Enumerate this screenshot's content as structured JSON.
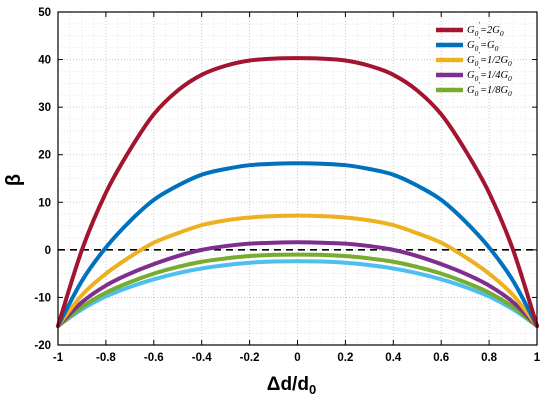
{
  "chart_data": {
    "type": "line",
    "title": "",
    "xlabel_main": "Δd/d",
    "xlabel_sub": "0",
    "ylabel": "β",
    "xlim": [
      -1,
      1
    ],
    "ylim": [
      -20,
      50
    ],
    "xticks": [
      -1,
      -0.8,
      -0.6,
      -0.4,
      -0.2,
      0,
      0.2,
      0.4,
      0.6,
      0.8,
      1
    ],
    "yticks": [
      -20,
      -10,
      0,
      10,
      20,
      30,
      40,
      50
    ],
    "xtick_labels": [
      "-1",
      "-0.8",
      "-0.6",
      "-0.4",
      "-0.2",
      "0",
      "0.2",
      "0.4",
      "0.6",
      "0.8",
      "1"
    ],
    "ytick_labels": [
      "-20",
      "-10",
      "0",
      "10",
      "20",
      "30",
      "40",
      "50"
    ],
    "grid": true,
    "legend_position": "top-right",
    "reference_line": {
      "y": 0,
      "style": "dashed"
    },
    "x": [
      -1,
      -0.9,
      -0.8,
      -0.7,
      -0.6,
      -0.5,
      -0.4,
      -0.3,
      -0.2,
      -0.1,
      0,
      0.1,
      0.2,
      0.3,
      0.4,
      0.5,
      0.6,
      0.7,
      0.8,
      0.9,
      1
    ],
    "series": [
      {
        "name_html": "<tspan>G</tspan><tspan class=\"sub\" dy=\"3\">0</tspan><tspan dy=\"-9\" class=\"sub\">'</tspan><tspan dy=\"6\">=2G</tspan><tspan class=\"sub\" dy=\"3\">0</tspan>",
        "color": "#a2142f",
        "values": [
          -16,
          0,
          12,
          21,
          28.5,
          33.5,
          36.8,
          38.7,
          39.8,
          40.2,
          40.3,
          40.2,
          39.8,
          38.7,
          36.8,
          33.5,
          28.5,
          21,
          12,
          0,
          -16
        ]
      },
      {
        "name_html": "<tspan>G</tspan><tspan class=\"sub\" dy=\"3\">0</tspan><tspan dy=\"-9\" class=\"sub\">'</tspan><tspan dy=\"6\">=G</tspan><tspan class=\"sub\" dy=\"3\">0</tspan>",
        "color": "#0072bd",
        "values": [
          -16,
          -6.5,
          0.5,
          6,
          10.5,
          13.5,
          15.8,
          17,
          17.8,
          18.1,
          18.2,
          18.1,
          17.8,
          17,
          15.8,
          13.5,
          10.5,
          6,
          0.5,
          -6.5,
          -16
        ]
      },
      {
        "name_html": "<tspan>G</tspan><tspan class=\"sub\" dy=\"3\">0</tspan><tspan dy=\"-9\" class=\"sub\">'</tspan><tspan dy=\"6\">=1/2G</tspan><tspan class=\"sub\" dy=\"3\">0</tspan>",
        "color": "#edb120",
        "values": [
          -16,
          -9.5,
          -5,
          -1.5,
          1.5,
          3.5,
          5.2,
          6.2,
          6.8,
          7.1,
          7.2,
          7.1,
          6.8,
          6.2,
          5.2,
          3.5,
          1.5,
          -1.5,
          -5,
          -9.5,
          -16
        ]
      },
      {
        "name_html": "<tspan>G</tspan><tspan class=\"sub\" dy=\"3\">0</tspan><tspan dy=\"-9\" class=\"sub\">'</tspan><tspan dy=\"6\">=1/4G</tspan><tspan class=\"sub\" dy=\"3\">0</tspan>",
        "color": "#7e2f8e",
        "values": [
          -16,
          -11,
          -7.5,
          -5,
          -3,
          -1.3,
          0,
          0.8,
          1.3,
          1.5,
          1.6,
          1.5,
          1.3,
          0.8,
          0,
          -1.3,
          -3,
          -5,
          -7.5,
          -11,
          -16
        ]
      },
      {
        "name_html": "<tspan>G</tspan><tspan class=\"sub\" dy=\"3\">0</tspan><tspan dy=\"-9\" class=\"sub\">'</tspan><tspan dy=\"6\">=1/8G</tspan><tspan class=\"sub\" dy=\"3\">0</tspan>",
        "color": "#77ac30",
        "values": [
          -16,
          -12,
          -9,
          -6.8,
          -5,
          -3.6,
          -2.5,
          -1.8,
          -1.3,
          -1.05,
          -1,
          -1.05,
          -1.3,
          -1.8,
          -2.5,
          -3.6,
          -5,
          -6.8,
          -9,
          -12,
          -16
        ]
      },
      {
        "name_html": "",
        "color": "#4dbeee",
        "values": [
          -16,
          -12.5,
          -9.8,
          -7.8,
          -6.2,
          -4.9,
          -3.9,
          -3.2,
          -2.7,
          -2.45,
          -2.4,
          -2.45,
          -2.7,
          -3.2,
          -3.9,
          -4.9,
          -6.2,
          -7.8,
          -9.8,
          -12.5,
          -16
        ]
      }
    ]
  }
}
